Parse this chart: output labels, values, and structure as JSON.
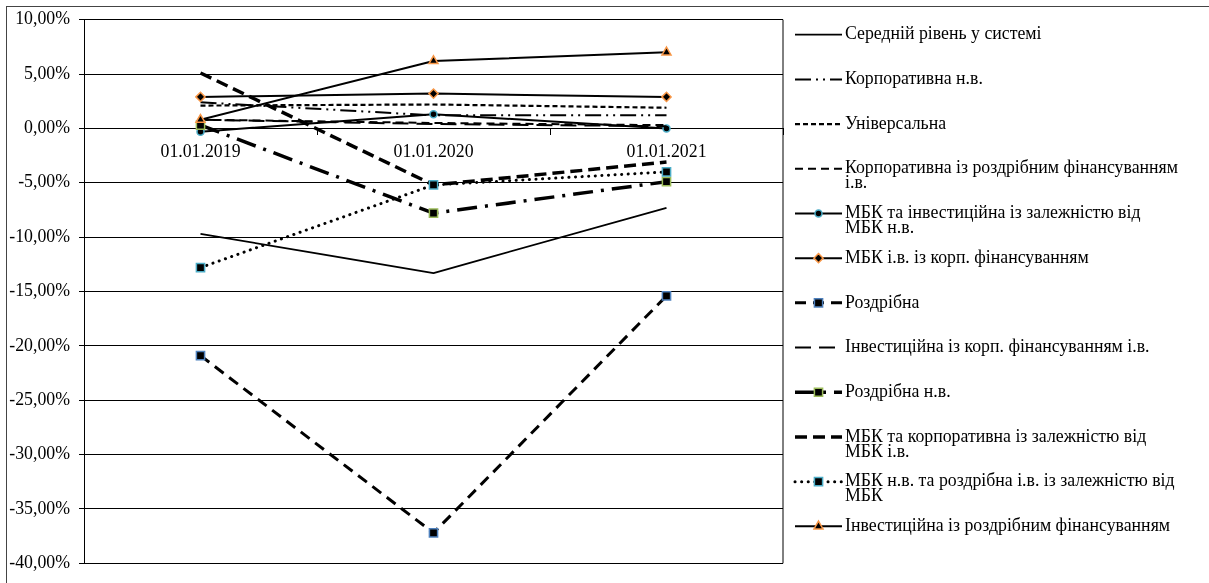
{
  "chart_data": {
    "type": "line",
    "categories": [
      "01.01.2019",
      "01.01.2020",
      "01.01.2021"
    ],
    "ylim": [
      -40,
      10
    ],
    "yticks": [
      {
        "value": -40,
        "label": "-40,00%"
      },
      {
        "value": -35,
        "label": "-35,00%"
      },
      {
        "value": -30,
        "label": "-30,00%"
      },
      {
        "value": -25,
        "label": "-25,00%"
      },
      {
        "value": -20,
        "label": "-20,00%"
      },
      {
        "value": -15,
        "label": "-15,00%"
      },
      {
        "value": -10,
        "label": "-10,00%"
      },
      {
        "value": -5,
        "label": "-5,00%"
      },
      {
        "value": 0,
        "label": "0,00%"
      },
      {
        "value": 5,
        "label": "5,00%"
      },
      {
        "value": 10,
        "label": "10,00%"
      }
    ],
    "grid": "y",
    "legend": "right",
    "series": [
      {
        "name": "Середній рівень у системі",
        "color": "#000000",
        "line_style": "solid",
        "values": [
          -9.7,
          -13.3,
          -7.3
        ]
      },
      {
        "name": "Корпоративна н.в.",
        "color": "#000000",
        "line_style": "dashed",
        "values": [
          2.4,
          1.2,
          1.2
        ]
      },
      {
        "name": "Універсальна",
        "color": "#000000",
        "line_style": "dashed",
        "values": [
          2.1,
          2.2,
          1.9
        ]
      },
      {
        "name": "Корпоративна із роздрібним фінансуванням і.в.",
        "color": "#000000",
        "line_style": "dashed",
        "values": [
          0.8,
          0.5,
          0.3
        ]
      },
      {
        "name": "МБК та інвестиційна із залежністю від МБК н.в.",
        "color": "#000000",
        "line_style": "solid",
        "marker": "circle",
        "values": [
          -0.3,
          1.3,
          0.0
        ]
      },
      {
        "name": "МБК і.в. із корп. фінансуванням",
        "color": "#000000",
        "line_style": "solid",
        "marker": "diamond",
        "values": [
          2.9,
          3.2,
          2.9
        ]
      },
      {
        "name": "Роздрібна",
        "color": "#000000",
        "line_style": "dashed",
        "marker": "square",
        "values": [
          -20.9,
          -37.2,
          -15.4
        ]
      },
      {
        "name": "Інвестиційна із корп. фінансуванням і.в.",
        "color": "#000000",
        "line_style": "dashed",
        "values": [
          0.8,
          0.4,
          0.2
        ]
      },
      {
        "name": "Роздрібна н.в.",
        "color": "#000000",
        "line_style": "dashed",
        "marker": "square",
        "values": [
          0.3,
          -7.8,
          -4.9
        ]
      },
      {
        "name": "МБК та корпоративна із залежністю від МБК і.в.",
        "color": "#000000",
        "line_style": "dashed",
        "values": [
          5.1,
          -5.2,
          -3.1
        ]
      },
      {
        "name": "МБК н.в. та роздрібна і.в. із залежністю від МБК",
        "color": "#000000",
        "line_style": "dotted",
        "marker": "square",
        "values": [
          -12.8,
          -5.2,
          -4.0
        ]
      },
      {
        "name": "Інвестиційна із роздрібним фінансуванням",
        "color": "#000000",
        "line_style": "solid",
        "marker": "triangle",
        "values": [
          0.8,
          6.2,
          7.0
        ]
      }
    ]
  }
}
